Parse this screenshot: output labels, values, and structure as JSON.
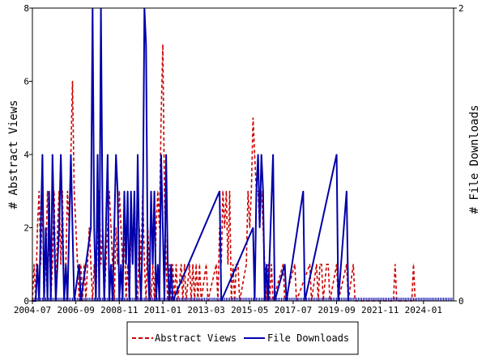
{
  "chart_data": {
    "type": "line",
    "x_tick_labels": [
      "2004-07",
      "2006-09",
      "2008-11",
      "2011-01",
      "2013-03",
      "2015-05",
      "2017-07",
      "2019-09",
      "2021-11",
      "2024-01"
    ],
    "x_range": [
      "2004-07",
      "2025-07"
    ],
    "ylabel_left": "# Abstract Views",
    "ylabel_right": "# File Downloads",
    "ylim_left": [
      0,
      8
    ],
    "ylim_right": [
      0,
      2
    ],
    "yticks_left": [
      "0",
      "2",
      "4",
      "6",
      "8"
    ],
    "yticks_right": [
      "0",
      "2"
    ],
    "legend_placement": "bottom-center",
    "colors": {
      "abstract_views": "#cc0000",
      "file_downloads": "#0000aa"
    },
    "series": [
      {
        "name": "Abstract Views",
        "axis": "left",
        "style": "dashed",
        "points": [
          [
            "2004-07",
            0
          ],
          [
            "2004-08",
            1
          ],
          [
            "2004-09",
            0
          ],
          [
            "2004-10",
            2
          ],
          [
            "2004-11",
            3
          ],
          [
            "2004-12",
            1
          ],
          [
            "2005-01",
            3
          ],
          [
            "2005-02",
            0
          ],
          [
            "2005-03",
            1
          ],
          [
            "2005-04",
            3
          ],
          [
            "2005-05",
            2
          ],
          [
            "2005-06",
            0
          ],
          [
            "2005-07",
            1
          ],
          [
            "2005-08",
            3
          ],
          [
            "2005-09",
            0
          ],
          [
            "2005-10",
            2
          ],
          [
            "2005-11",
            3
          ],
          [
            "2005-12",
            1
          ],
          [
            "2006-01",
            3
          ],
          [
            "2006-02",
            0
          ],
          [
            "2006-03",
            1
          ],
          [
            "2006-04",
            3
          ],
          [
            "2006-05",
            2
          ],
          [
            "2006-06",
            4
          ],
          [
            "2006-07",
            6
          ],
          [
            "2006-08",
            3
          ],
          [
            "2006-09",
            2
          ],
          [
            "2006-10",
            1
          ],
          [
            "2006-11",
            0
          ],
          [
            "2006-12",
            1
          ],
          [
            "2007-01",
            0
          ],
          [
            "2007-02",
            1
          ],
          [
            "2007-03",
            0
          ],
          [
            "2007-04",
            1
          ],
          [
            "2007-05",
            2
          ],
          [
            "2007-06",
            1
          ],
          [
            "2007-07",
            0
          ],
          [
            "2007-08",
            1
          ],
          [
            "2007-09",
            0
          ],
          [
            "2007-10",
            2
          ],
          [
            "2007-11",
            3
          ],
          [
            "2007-12",
            1
          ],
          [
            "2008-01",
            2
          ],
          [
            "2008-02",
            0
          ],
          [
            "2008-03",
            1
          ],
          [
            "2008-04",
            2
          ],
          [
            "2008-05",
            3
          ],
          [
            "2008-06",
            2
          ],
          [
            "2008-07",
            1
          ],
          [
            "2008-08",
            0
          ],
          [
            "2008-09",
            2
          ],
          [
            "2008-10",
            1
          ],
          [
            "2008-11",
            3
          ],
          [
            "2008-12",
            2
          ],
          [
            "2009-01",
            1
          ],
          [
            "2009-02",
            2
          ],
          [
            "2009-03",
            0
          ],
          [
            "2009-04",
            1
          ],
          [
            "2009-05",
            0
          ],
          [
            "2009-06",
            2
          ],
          [
            "2009-07",
            1
          ],
          [
            "2009-08",
            3
          ],
          [
            "2009-09",
            1
          ],
          [
            "2009-10",
            0
          ],
          [
            "2009-11",
            2
          ],
          [
            "2009-12",
            1
          ],
          [
            "2010-01",
            3
          ],
          [
            "2010-02",
            1
          ],
          [
            "2010-03",
            0
          ],
          [
            "2010-04",
            2
          ],
          [
            "2010-05",
            1
          ],
          [
            "2010-06",
            0
          ],
          [
            "2010-07",
            1
          ],
          [
            "2010-08",
            0
          ],
          [
            "2010-09",
            2
          ],
          [
            "2010-10",
            3
          ],
          [
            "2010-11",
            2
          ],
          [
            "2010-12",
            5
          ],
          [
            "2011-01",
            7
          ],
          [
            "2011-02",
            3
          ],
          [
            "2011-03",
            1
          ],
          [
            "2011-04",
            0
          ],
          [
            "2011-05",
            1
          ],
          [
            "2011-06",
            0
          ],
          [
            "2011-07",
            1
          ],
          [
            "2011-08",
            0
          ],
          [
            "2011-09",
            1
          ],
          [
            "2011-10",
            0
          ],
          [
            "2011-12",
            1
          ],
          [
            "2012-01",
            0
          ],
          [
            "2012-02",
            1
          ],
          [
            "2012-03",
            0
          ],
          [
            "2012-05",
            1
          ],
          [
            "2012-06",
            0
          ],
          [
            "2012-07",
            1
          ],
          [
            "2012-08",
            0
          ],
          [
            "2012-09",
            1
          ],
          [
            "2012-10",
            0
          ],
          [
            "2012-11",
            1
          ],
          [
            "2012-12",
            0
          ],
          [
            "2013-03",
            1
          ],
          [
            "2013-04",
            0
          ],
          [
            "2013-09",
            1
          ],
          [
            "2013-10",
            0
          ],
          [
            "2013-11",
            2
          ],
          [
            "2013-12",
            1
          ],
          [
            "2014-01",
            3
          ],
          [
            "2014-02",
            2
          ],
          [
            "2014-03",
            3
          ],
          [
            "2014-04",
            1
          ],
          [
            "2014-05",
            3
          ],
          [
            "2014-06",
            0
          ],
          [
            "2014-07",
            1
          ],
          [
            "2014-08",
            0
          ],
          [
            "2014-09",
            1
          ],
          [
            "2014-10",
            1
          ],
          [
            "2014-11",
            0
          ],
          [
            "2015-03",
            1
          ],
          [
            "2015-04",
            3
          ],
          [
            "2015-05",
            2
          ],
          [
            "2015-06",
            3
          ],
          [
            "2015-07",
            5
          ],
          [
            "2015-08",
            4
          ],
          [
            "2015-09",
            3
          ],
          [
            "2015-10",
            3
          ],
          [
            "2015-11",
            2
          ],
          [
            "2015-12",
            3
          ],
          [
            "2016-01",
            2
          ],
          [
            "2016-02",
            1
          ],
          [
            "2016-03",
            0
          ],
          [
            "2016-04",
            1
          ],
          [
            "2016-05",
            0
          ],
          [
            "2016-06",
            1
          ],
          [
            "2016-07",
            0
          ],
          [
            "2017-01",
            1
          ],
          [
            "2017-02",
            0
          ],
          [
            "2017-08",
            1
          ],
          [
            "2017-09",
            0
          ],
          [
            "2018-05",
            1
          ],
          [
            "2018-06",
            0
          ],
          [
            "2018-09",
            1
          ],
          [
            "2018-10",
            0
          ],
          [
            "2018-11",
            1
          ],
          [
            "2018-12",
            1
          ],
          [
            "2019-01",
            0
          ],
          [
            "2019-03",
            1
          ],
          [
            "2019-04",
            1
          ],
          [
            "2019-05",
            0
          ],
          [
            "2019-09",
            1
          ],
          [
            "2019-10",
            0
          ],
          [
            "2020-03",
            1
          ],
          [
            "2020-04",
            0
          ],
          [
            "2020-07",
            1
          ],
          [
            "2020-08",
            0
          ],
          [
            "2022-07",
            0
          ],
          [
            "2022-08",
            1
          ],
          [
            "2022-09",
            0
          ],
          [
            "2023-06",
            0
          ],
          [
            "2023-07",
            1
          ],
          [
            "2023-08",
            0
          ]
        ]
      },
      {
        "name": "File Downloads",
        "axis": "right",
        "style": "solid",
        "points": [
          [
            "2004-07",
            0
          ],
          [
            "2004-08",
            0
          ],
          [
            "2004-09",
            0
          ],
          [
            "2004-10",
            0.25
          ],
          [
            "2004-11",
            0
          ],
          [
            "2005-01",
            1
          ],
          [
            "2005-02",
            0
          ],
          [
            "2005-03",
            0.5
          ],
          [
            "2005-04",
            0
          ],
          [
            "2005-05",
            0.75
          ],
          [
            "2005-06",
            0
          ],
          [
            "2005-07",
            1
          ],
          [
            "2005-08",
            0.5
          ],
          [
            "2005-09",
            0
          ],
          [
            "2005-11",
            0.5
          ],
          [
            "2005-12",
            1
          ],
          [
            "2006-01",
            0.5
          ],
          [
            "2006-02",
            0
          ],
          [
            "2006-03",
            0.25
          ],
          [
            "2006-04",
            0
          ],
          [
            "2006-06",
            1
          ],
          [
            "2006-07",
            0.5
          ],
          [
            "2006-08",
            0
          ],
          [
            "2006-11",
            0.25
          ],
          [
            "2006-12",
            0
          ],
          [
            "2007-06",
            0.5
          ],
          [
            "2007-07",
            2
          ],
          [
            "2007-08",
            0.5
          ],
          [
            "2007-09",
            0
          ],
          [
            "2007-10",
            1
          ],
          [
            "2007-11",
            0
          ],
          [
            "2007-12",
            2
          ],
          [
            "2008-01",
            0.5
          ],
          [
            "2008-02",
            0
          ],
          [
            "2008-04",
            1
          ],
          [
            "2008-05",
            0
          ],
          [
            "2008-06",
            0.25
          ],
          [
            "2008-07",
            0
          ],
          [
            "2008-08",
            0.5
          ],
          [
            "2008-09",
            1
          ],
          [
            "2008-10",
            0.75
          ],
          [
            "2008-11",
            0
          ],
          [
            "2008-12",
            0.25
          ],
          [
            "2009-01",
            0
          ],
          [
            "2009-02",
            0.75
          ],
          [
            "2009-03",
            0.25
          ],
          [
            "2009-04",
            0.75
          ],
          [
            "2009-05",
            0
          ],
          [
            "2009-06",
            0.75
          ],
          [
            "2009-07",
            0.25
          ],
          [
            "2009-08",
            0.75
          ],
          [
            "2009-09",
            0
          ],
          [
            "2009-10",
            1
          ],
          [
            "2009-11",
            0.25
          ],
          [
            "2009-12",
            0
          ],
          [
            "2010-01",
            0.5
          ],
          [
            "2010-02",
            2
          ],
          [
            "2010-03",
            1.75
          ],
          [
            "2010-04",
            0.25
          ],
          [
            "2010-05",
            0
          ],
          [
            "2010-06",
            0.75
          ],
          [
            "2010-07",
            0.25
          ],
          [
            "2010-08",
            0.75
          ],
          [
            "2010-09",
            0
          ],
          [
            "2010-10",
            0.25
          ],
          [
            "2010-11",
            0
          ],
          [
            "2010-12",
            1
          ],
          [
            "2011-01",
            0.5
          ],
          [
            "2011-02",
            0
          ],
          [
            "2011-03",
            1
          ],
          [
            "2011-04",
            0.25
          ],
          [
            "2011-05",
            0
          ],
          [
            "2011-06",
            0.25
          ],
          [
            "2011-07",
            0
          ],
          [
            "2013-11",
            0.75
          ],
          [
            "2013-12",
            0
          ],
          [
            "2015-07",
            0.5
          ],
          [
            "2015-08",
            0
          ],
          [
            "2015-09",
            0.75
          ],
          [
            "2015-10",
            1
          ],
          [
            "2015-11",
            0.5
          ],
          [
            "2015-12",
            1
          ],
          [
            "2016-01",
            0.75
          ],
          [
            "2016-02",
            0
          ],
          [
            "2016-03",
            0.25
          ],
          [
            "2016-04",
            0
          ],
          [
            "2016-07",
            1
          ],
          [
            "2016-08",
            0
          ],
          [
            "2017-02",
            0.25
          ],
          [
            "2017-03",
            0
          ],
          [
            "2018-01",
            0.75
          ],
          [
            "2018-02",
            0
          ],
          [
            "2019-09",
            1
          ],
          [
            "2019-10",
            0
          ],
          [
            "2020-03",
            0.75
          ],
          [
            "2020-04",
            0
          ]
        ]
      }
    ]
  },
  "legend": {
    "abstract_views_label": "Abstract Views",
    "file_downloads_label": "File Downloads"
  }
}
